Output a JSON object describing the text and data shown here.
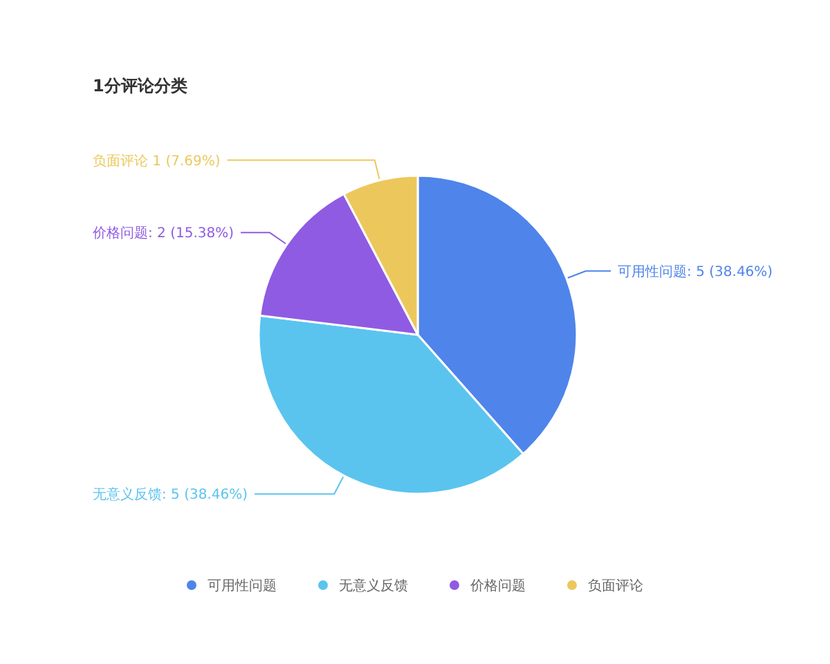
{
  "chart_data": {
    "type": "pie",
    "title": "1分评论分类",
    "categories": [
      "可用性问题",
      "无意义反馈",
      "价格问题",
      "负面评论"
    ],
    "values": [
      5,
      5,
      2,
      1
    ],
    "colors": [
      "#4f84ea",
      "#5ac4ef",
      "#8f5be3",
      "#ecc85c"
    ],
    "value_labels": [
      "可用性问题: 5 (38.46%)",
      "无意义反馈: 5 (38.46%)",
      "价格问题: 2 (15.38%)",
      "负面评论 1 (7.69%)"
    ],
    "legend": "bottom"
  }
}
